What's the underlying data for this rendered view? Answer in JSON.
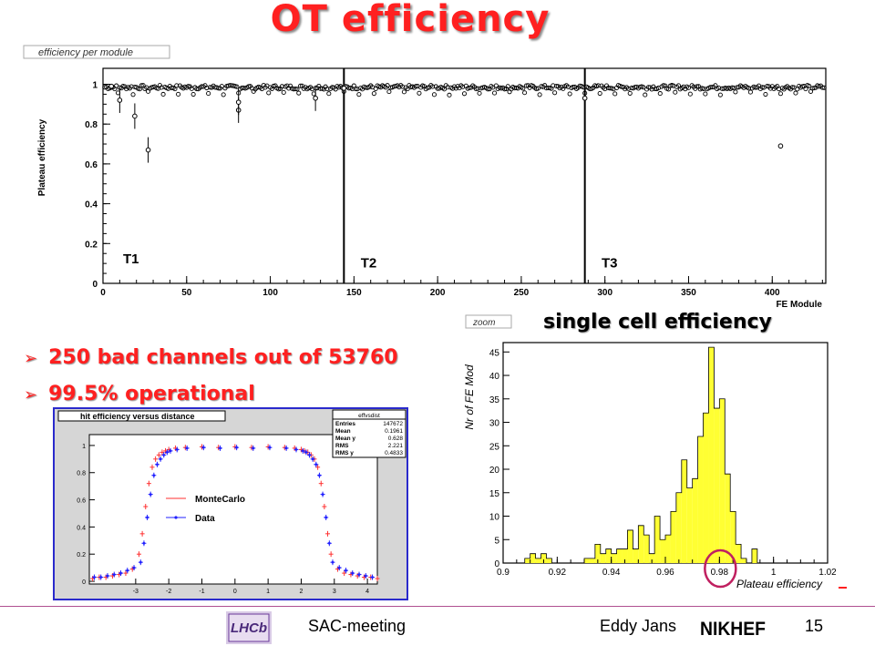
{
  "slide": {
    "title": "OT efficiency",
    "bullets": [
      "250 bad channels out of 53760",
      "99.5% operational"
    ],
    "bullet_marker": "➢",
    "cell_title": "single cell efficiency",
    "footer": {
      "meeting": "SAC-meeting",
      "author": "Eddy Jans",
      "page": "15",
      "lhcb_logo_text": "LHCb",
      "nikhef_logo_text": "NIKHEF"
    }
  },
  "chart_data": [
    {
      "type": "scatter",
      "title": "efficiency per module",
      "xlabel": "FE Module",
      "ylabel": "Plateau efficiency",
      "xlim": [
        0,
        432
      ],
      "ylim": [
        0,
        1.08
      ],
      "xticks": [
        0,
        50,
        100,
        150,
        200,
        250,
        300,
        350,
        400
      ],
      "yticks": [
        0,
        0.2,
        0.4,
        0.6,
        0.8,
        1
      ],
      "ytick_labels": [
        "0",
        "0.2",
        "0.4",
        "0.6",
        "0.8",
        "1"
      ],
      "station_boundaries": [
        144,
        288
      ],
      "station_labels": [
        {
          "text": "T1",
          "x": 12,
          "y": 0.1
        },
        {
          "text": "T2",
          "x": 154,
          "y": 0.08
        },
        {
          "text": "T3",
          "x": 298,
          "y": 0.08
        }
      ],
      "baseline_efficiency": 0.985,
      "outliers": [
        {
          "x": 5,
          "y": 0.99
        },
        {
          "x": 10,
          "y": 0.92
        },
        {
          "x": 19,
          "y": 0.84
        },
        {
          "x": 27,
          "y": 0.67
        },
        {
          "x": 81,
          "y": 0.87
        },
        {
          "x": 81,
          "y": 0.91
        },
        {
          "x": 127,
          "y": 0.93
        },
        {
          "x": 144,
          "y": 0.98
        },
        {
          "x": 288,
          "y": 0.93
        },
        {
          "x": 405,
          "y": 0.69
        }
      ]
    },
    {
      "type": "bar",
      "title": "zoom",
      "xlabel": "Plateau efficiency",
      "ylabel": "Nr of FE Mod",
      "xlim": [
        0.9,
        1.02
      ],
      "ylim": [
        0,
        47
      ],
      "xticks": [
        0.9,
        0.92,
        0.94,
        0.96,
        0.98,
        1,
        1.02
      ],
      "xtick_labels": [
        "0.9",
        "0.92",
        "0.94",
        "0.96",
        "0.98",
        "1",
        "1.02"
      ],
      "yticks": [
        0,
        5,
        10,
        15,
        20,
        25,
        30,
        35,
        40,
        45
      ],
      "bin_width": 0.002,
      "bin_start": 0.9,
      "values": [
        0,
        0,
        0,
        0,
        1,
        2,
        1,
        2,
        1,
        0,
        0,
        0,
        0,
        0,
        0,
        1,
        1,
        4,
        2,
        3,
        2,
        3,
        3,
        7,
        3,
        8,
        6,
        2,
        10,
        5,
        6,
        11,
        15,
        22,
        16,
        18,
        27,
        32,
        46,
        33,
        35,
        19,
        11,
        4,
        1,
        0,
        3,
        0,
        0,
        0,
        0,
        0,
        0,
        0,
        0,
        0,
        0,
        0,
        0,
        0
      ],
      "fill_color": "#ffff33",
      "highlight": {
        "x": 0.98,
        "color": "#c02060"
      }
    },
    {
      "type": "scatter",
      "title": "hit efficiency versus distance",
      "xlim": [
        -4.4,
        4.3
      ],
      "ylim": [
        -0.02,
        1.08
      ],
      "xticks": [
        -3,
        -2,
        -1,
        0,
        1,
        2,
        3,
        4
      ],
      "yticks": [
        0,
        0.2,
        0.4,
        0.6,
        0.8,
        1
      ],
      "ytick_labels": [
        "0",
        "0.2",
        "0.4",
        "0.6",
        "0.8",
        "1"
      ],
      "legend": [
        {
          "name": "MonteCarlo",
          "color": "#ff3030"
        },
        {
          "name": "Data",
          "color": "#2020ff"
        }
      ],
      "stats": {
        "name": "effvsdist",
        "rows": [
          [
            "Entries",
            "147672"
          ],
          [
            "Mean",
            "0.1961"
          ],
          [
            "Mean y",
            "0.628"
          ],
          [
            "RMS",
            "2.221"
          ],
          [
            "RMS y",
            "0.4833"
          ]
        ]
      },
      "series": [
        {
          "name": "MonteCarlo",
          "color": "#ff3030",
          "x": [
            -4.3,
            -4.1,
            -3.9,
            -3.7,
            -3.5,
            -3.3,
            -3.1,
            -2.9,
            -2.8,
            -2.7,
            -2.6,
            -2.5,
            -2.4,
            -2.3,
            -2.2,
            -2.1,
            -2.0,
            -1.8,
            -1.5,
            -1,
            -0.5,
            0,
            0.5,
            1,
            1.5,
            1.8,
            2.0,
            2.1,
            2.2,
            2.3,
            2.4,
            2.5,
            2.6,
            2.7,
            2.8,
            2.9,
            3.1,
            3.3,
            3.5,
            3.7,
            3.9,
            4.1,
            4.3
          ],
          "y": [
            0.02,
            0.03,
            0.03,
            0.04,
            0.05,
            0.06,
            0.09,
            0.2,
            0.35,
            0.55,
            0.72,
            0.84,
            0.9,
            0.93,
            0.95,
            0.96,
            0.97,
            0.98,
            0.985,
            0.99,
            0.985,
            0.99,
            0.985,
            0.99,
            0.985,
            0.98,
            0.97,
            0.96,
            0.95,
            0.93,
            0.9,
            0.84,
            0.72,
            0.55,
            0.35,
            0.2,
            0.09,
            0.06,
            0.05,
            0.04,
            0.03,
            0.03,
            0.02
          ]
        },
        {
          "name": "Data",
          "color": "#2020ff",
          "x": [
            -4.25,
            -4.05,
            -3.85,
            -3.65,
            -3.45,
            -3.25,
            -3.05,
            -2.85,
            -2.75,
            -2.65,
            -2.55,
            -2.45,
            -2.35,
            -2.25,
            -2.15,
            -2.05,
            -1.95,
            -1.75,
            -1.45,
            -0.95,
            -0.45,
            0.05,
            0.55,
            1.05,
            1.55,
            1.85,
            2.05,
            2.15,
            2.25,
            2.35,
            2.45,
            2.55,
            2.65,
            2.75,
            2.85,
            2.95,
            3.15,
            3.35,
            3.55,
            3.75,
            3.95,
            4.15
          ],
          "y": [
            0.03,
            0.03,
            0.04,
            0.05,
            0.06,
            0.08,
            0.1,
            0.14,
            0.28,
            0.47,
            0.64,
            0.78,
            0.86,
            0.9,
            0.93,
            0.95,
            0.96,
            0.97,
            0.98,
            0.985,
            0.98,
            0.985,
            0.98,
            0.985,
            0.98,
            0.97,
            0.96,
            0.95,
            0.93,
            0.9,
            0.86,
            0.78,
            0.64,
            0.47,
            0.28,
            0.14,
            0.1,
            0.08,
            0.06,
            0.05,
            0.04,
            0.03
          ]
        }
      ]
    }
  ]
}
